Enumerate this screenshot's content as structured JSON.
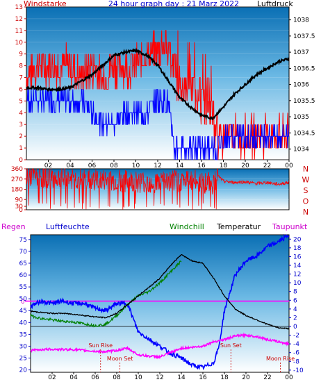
{
  "title": "24 hour graph day : 21 Marz 2022",
  "labels": {
    "windstarke": "Windstarke",
    "luftdruck": "Luftdruck",
    "regen": "Regen",
    "luftfeuchte": "Luftfeuchte",
    "windchill": "Windchill",
    "temperatur": "Temperatur",
    "taupunkt": "Taupunkt",
    "sun_rise": "Sun Rise",
    "sun_set": "Sun Set",
    "moon_set": "Moon Set",
    "moon_rise": "Moon Rise",
    "regen_zero": "0"
  },
  "compass": [
    "N",
    "W",
    "S",
    "O",
    "N"
  ],
  "colors": {
    "wind_gust": "#ff0000",
    "wind_avg": "#0000ff",
    "pressure": "#000000",
    "direction": "#ff0000",
    "humidity": "#0000ff",
    "windchill": "#008000",
    "temperature": "#000000",
    "dewpoint": "#ff00ff",
    "axis_left_top": "#cc0000",
    "axis_right_top": "#000000",
    "axis_bottom_left": "#0000cc",
    "axis_bottom_right": "#0000cc",
    "plot_top": "#ffffff",
    "plot_bottom": "#3399dd"
  },
  "chart_data": [
    {
      "type": "line",
      "name": "wind_pressure",
      "x_ticks": [
        "02",
        "04",
        "06",
        "08",
        "10",
        "12",
        "14",
        "16",
        "18",
        "20",
        "22",
        "00"
      ],
      "left_axis": {
        "label": "Windstarke",
        "ticks": [
          0,
          1,
          2,
          3,
          4,
          5,
          6,
          7,
          8,
          9,
          10,
          11,
          12,
          13
        ],
        "ylim": [
          0,
          13
        ]
      },
      "right_axis": {
        "label": "Luftdruck",
        "ticks": [
          1034,
          1034.5,
          1035,
          1035.5,
          1036,
          1036.5,
          1037,
          1037.5,
          1038
        ],
        "ylim": [
          1033.67,
          1038.4
        ]
      },
      "series": [
        {
          "name": "Windstarke",
          "axis": "left",
          "x": [
            0,
            1,
            2,
            3,
            4,
            5,
            6,
            7,
            8,
            9,
            10,
            11,
            12,
            12.5,
            13,
            13.5,
            14,
            15,
            16,
            17,
            17.5,
            18,
            19,
            20,
            21,
            22,
            23,
            24
          ],
          "values": [
            7,
            8,
            8,
            8,
            8,
            7,
            8,
            7,
            8,
            8,
            8,
            9,
            9,
            10,
            9,
            8,
            6,
            6,
            5,
            4,
            1,
            2,
            2,
            2,
            2,
            2,
            2,
            2
          ]
        },
        {
          "name": "Wind avg",
          "axis": "left",
          "x": [
            0,
            1,
            2,
            3,
            4,
            5,
            6,
            7,
            8,
            9,
            10,
            11,
            12,
            13,
            13.5,
            14,
            15,
            16,
            17,
            17.5,
            18,
            19,
            20,
            21,
            22,
            23,
            24
          ],
          "values": [
            5,
            5,
            5,
            5,
            5,
            5,
            4,
            3,
            3,
            4,
            4,
            4,
            5,
            5,
            1,
            1,
            1,
            1,
            1,
            1,
            2,
            2,
            2,
            2,
            2,
            2,
            2
          ]
        },
        {
          "name": "Luftdruck",
          "axis": "right",
          "x": [
            0,
            1,
            2,
            3,
            4,
            5,
            6,
            7,
            8,
            9,
            10,
            11,
            12,
            13,
            14,
            15,
            16,
            17,
            18,
            19,
            20,
            21,
            22,
            23,
            24
          ],
          "values": [
            1035.9,
            1035.9,
            1035.85,
            1035.85,
            1035.9,
            1036.1,
            1036.3,
            1036.6,
            1036.9,
            1037.0,
            1037.05,
            1036.9,
            1036.6,
            1036.1,
            1035.6,
            1035.3,
            1035.05,
            1034.95,
            1035.3,
            1035.7,
            1036.0,
            1036.3,
            1036.5,
            1036.7,
            1036.8
          ]
        }
      ]
    },
    {
      "type": "line",
      "name": "wind_direction",
      "x_ticks": [
        "02",
        "04",
        "06",
        "08",
        "10",
        "12",
        "14",
        "16",
        "18",
        "20",
        "22",
        "00"
      ],
      "left_axis": {
        "ticks": [
          0,
          30,
          90,
          180,
          270,
          360
        ],
        "ylim": [
          0,
          360
        ]
      },
      "series": [
        {
          "name": "Windrichtung",
          "x": [
            0,
            3,
            6,
            9,
            12,
            15,
            17,
            17.5,
            18,
            19,
            20,
            21,
            22,
            23,
            24
          ],
          "values": [
            300,
            280,
            260,
            250,
            240,
            260,
            230,
            300,
            250,
            240,
            245,
            230,
            240,
            225,
            240
          ]
        }
      ]
    },
    {
      "type": "line",
      "name": "temp_humidity",
      "x_ticks": [
        "02",
        "04",
        "06",
        "08",
        "10",
        "12",
        "14",
        "16",
        "18",
        "20",
        "22",
        "00"
      ],
      "left_axis": {
        "label": "Luftfeuchte",
        "ticks": [
          20,
          25,
          30,
          35,
          40,
          45,
          50,
          55,
          60,
          65,
          70,
          75
        ],
        "ylim": [
          19,
          77
        ]
      },
      "right_axis": {
        "label": "Temperatur",
        "ticks": [
          -10,
          -8,
          -6,
          -4,
          -2,
          0,
          2,
          4,
          6,
          8,
          10,
          12,
          14,
          16,
          18,
          20
        ],
        "ylim": [
          -10.5,
          21
        ]
      },
      "series": [
        {
          "name": "Luftfeuchte",
          "axis": "left",
          "x": [
            0,
            1,
            2,
            3,
            4,
            5,
            6,
            7,
            8,
            9,
            10,
            11,
            12,
            13,
            14,
            15,
            16,
            17,
            17.5,
            18,
            19,
            20,
            21,
            22,
            23,
            24
          ],
          "values": [
            47,
            49,
            48,
            49,
            48,
            48,
            46,
            45,
            48,
            48,
            36,
            33,
            30,
            27,
            25,
            22,
            21,
            23,
            30,
            45,
            60,
            66,
            68,
            72,
            74,
            77
          ]
        },
        {
          "name": "Windchill",
          "axis": "right",
          "x": [
            0,
            1,
            2,
            3,
            4,
            5,
            6,
            7,
            8,
            9,
            10,
            11,
            12,
            13,
            14
          ],
          "values": [
            2.5,
            1.8,
            1.5,
            1.2,
            1.0,
            0.6,
            0.2,
            0.5,
            2.5,
            5.0,
            7.0,
            8.0,
            10.0,
            12.5,
            15.0
          ]
        },
        {
          "name": "Temperatur",
          "axis": "right",
          "x": [
            0,
            1,
            2,
            3,
            4,
            5,
            6,
            7,
            8,
            9,
            10,
            11,
            12,
            13,
            14,
            15,
            16,
            17,
            18,
            19,
            20,
            21,
            22,
            23,
            24
          ],
          "values": [
            3.5,
            3.2,
            3.0,
            3.0,
            2.8,
            2.5,
            2.2,
            2.0,
            3.0,
            5.0,
            7.0,
            9.0,
            11.0,
            14.0,
            16.5,
            15.0,
            14.5,
            11.0,
            7.0,
            4.0,
            2.5,
            1.5,
            0.5,
            -0.3,
            -0.5
          ]
        },
        {
          "name": "Taupunkt",
          "axis": "right",
          "x": [
            0,
            1,
            2,
            3,
            4,
            5,
            6,
            7,
            8,
            9,
            10,
            11,
            12,
            13,
            14,
            15,
            16,
            17,
            18,
            19,
            20,
            21,
            22,
            23,
            24
          ],
          "values": [
            -5.5,
            -5.3,
            -5.2,
            -5.3,
            -5.3,
            -5.5,
            -5.7,
            -5.8,
            -5.5,
            -5.0,
            -6.5,
            -6.8,
            -7.0,
            -6.0,
            -5.0,
            -4.8,
            -4.5,
            -3.5,
            -3.0,
            -2.2,
            -2.0,
            -2.3,
            -3.0,
            -3.5,
            -4.0
          ]
        },
        {
          "name": "Regen",
          "axis": "right",
          "x": [
            0,
            24
          ],
          "values": [
            0,
            0
          ]
        }
      ],
      "markers": [
        {
          "label": "Sun Rise",
          "x": 6.5
        },
        {
          "label": "Moon Set",
          "x": 8.3
        },
        {
          "label": "Sun Set",
          "x": 18.6
        },
        {
          "label": "Moon Rise",
          "x": 23.2
        }
      ]
    }
  ]
}
